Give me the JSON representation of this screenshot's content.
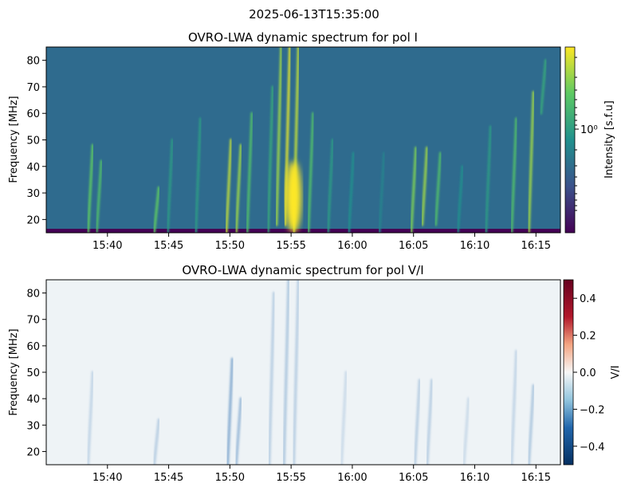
{
  "figure": {
    "suptitle": "2025-06-13T15:35:00"
  },
  "chart_data": [
    {
      "type": "heatmap",
      "title": "OVRO-LWA dynamic spectrum for pol I",
      "ylabel": "Frequency [MHz]",
      "xlabel": "",
      "x_ticks": [
        "15:40",
        "15:45",
        "15:50",
        "15:55",
        "16:00",
        "16:05",
        "16:10",
        "16:15"
      ],
      "x_tick_minutes": [
        5,
        10,
        15,
        20,
        25,
        30,
        35,
        40
      ],
      "xlim_minutes": [
        0,
        42
      ],
      "y_ticks": [
        20,
        30,
        40,
        50,
        60,
        70,
        80
      ],
      "ylim": [
        15,
        85
      ],
      "colormap": "viridis",
      "colorbar": {
        "label": "Intensity [s.f.u]",
        "scale": "log",
        "major_tick_label": "10⁰"
      },
      "background_color": "#2f6b8e",
      "bursts": [
        {
          "t": 3.8,
          "f_low": 15,
          "f_high": 48,
          "level": 0.75
        },
        {
          "t": 4.5,
          "f_low": 15,
          "f_high": 42,
          "level": 0.7
        },
        {
          "t": 9.2,
          "f_low": 15,
          "f_high": 32,
          "level": 0.75
        },
        {
          "t": 10.3,
          "f_low": 15,
          "f_high": 50,
          "level": 0.55
        },
        {
          "t": 12.6,
          "f_low": 15,
          "f_high": 58,
          "level": 0.55
        },
        {
          "t": 15.1,
          "f_low": 15,
          "f_high": 50,
          "level": 0.9
        },
        {
          "t": 15.9,
          "f_low": 15,
          "f_high": 48,
          "level": 0.85
        },
        {
          "t": 16.8,
          "f_low": 15,
          "f_high": 60,
          "level": 0.7
        },
        {
          "t": 18.5,
          "f_low": 15,
          "f_high": 70,
          "level": 0.6
        },
        {
          "t": 19.2,
          "f_low": 18,
          "f_high": 85,
          "level": 0.85
        },
        {
          "t": 19.9,
          "f_low": 18,
          "f_high": 85,
          "level": 0.95
        },
        {
          "t": 20.6,
          "f_low": 15,
          "f_high": 85,
          "level": 0.9
        },
        {
          "t": 21.8,
          "f_low": 15,
          "f_high": 60,
          "level": 0.7
        },
        {
          "t": 23.4,
          "f_low": 15,
          "f_high": 50,
          "level": 0.55
        },
        {
          "t": 25.1,
          "f_low": 15,
          "f_high": 45,
          "level": 0.5
        },
        {
          "t": 27.6,
          "f_low": 15,
          "f_high": 45,
          "level": 0.45
        },
        {
          "t": 30.2,
          "f_low": 15,
          "f_high": 47,
          "level": 0.8
        },
        {
          "t": 31.1,
          "f_low": 18,
          "f_high": 47,
          "level": 0.85
        },
        {
          "t": 32.2,
          "f_low": 18,
          "f_high": 45,
          "level": 0.7
        },
        {
          "t": 34.0,
          "f_low": 15,
          "f_high": 40,
          "level": 0.5
        },
        {
          "t": 36.3,
          "f_low": 15,
          "f_high": 55,
          "level": 0.55
        },
        {
          "t": 38.4,
          "f_low": 15,
          "f_high": 58,
          "level": 0.7
        },
        {
          "t": 39.8,
          "f_low": 15,
          "f_high": 68,
          "level": 0.85
        },
        {
          "t": 40.8,
          "f_low": 60,
          "f_high": 80,
          "level": 0.6
        }
      ],
      "hotspot": {
        "t": 20.2,
        "f_low": 15,
        "f_high": 42,
        "level": 1.0
      }
    },
    {
      "type": "heatmap",
      "title": "OVRO-LWA dynamic spectrum for pol V/I",
      "ylabel": "Frequency [MHz]",
      "xlabel": "",
      "x_ticks": [
        "15:40",
        "15:45",
        "15:50",
        "15:55",
        "16:00",
        "16:05",
        "16:10",
        "16:15"
      ],
      "x_tick_minutes": [
        5,
        10,
        15,
        20,
        25,
        30,
        35,
        40
      ],
      "xlim_minutes": [
        0,
        42
      ],
      "y_ticks": [
        20,
        30,
        40,
        50,
        60,
        70,
        80
      ],
      "ylim": [
        15,
        85
      ],
      "colormap": "RdBu_r",
      "colorbar": {
        "label": "V/I",
        "ticks": [
          "0.4",
          "0.2",
          "0.0",
          "−0.2",
          "−0.4"
        ],
        "tick_values": [
          0.4,
          0.2,
          0.0,
          -0.2,
          -0.4
        ],
        "range": [
          -0.5,
          0.5
        ]
      },
      "background_color": "#eef3f6",
      "bursts": [
        {
          "t": 3.8,
          "f_low": 15,
          "f_high": 50,
          "level": 0.25
        },
        {
          "t": 9.2,
          "f_low": 15,
          "f_high": 32,
          "level": 0.3
        },
        {
          "t": 15.2,
          "f_low": 15,
          "f_high": 55,
          "level": 0.55
        },
        {
          "t": 15.9,
          "f_low": 15,
          "f_high": 40,
          "level": 0.45
        },
        {
          "t": 18.6,
          "f_low": 15,
          "f_high": 80,
          "level": 0.3
        },
        {
          "t": 19.8,
          "f_low": 15,
          "f_high": 85,
          "level": 0.35
        },
        {
          "t": 20.6,
          "f_low": 15,
          "f_high": 85,
          "level": 0.3
        },
        {
          "t": 24.5,
          "f_low": 15,
          "f_high": 50,
          "level": 0.2
        },
        {
          "t": 30.5,
          "f_low": 15,
          "f_high": 47,
          "level": 0.3
        },
        {
          "t": 31.5,
          "f_low": 15,
          "f_high": 47,
          "level": 0.3
        },
        {
          "t": 34.5,
          "f_low": 15,
          "f_high": 40,
          "level": 0.2
        },
        {
          "t": 38.4,
          "f_low": 15,
          "f_high": 58,
          "level": 0.25
        },
        {
          "t": 39.8,
          "f_low": 15,
          "f_high": 45,
          "level": 0.35
        }
      ]
    }
  ]
}
